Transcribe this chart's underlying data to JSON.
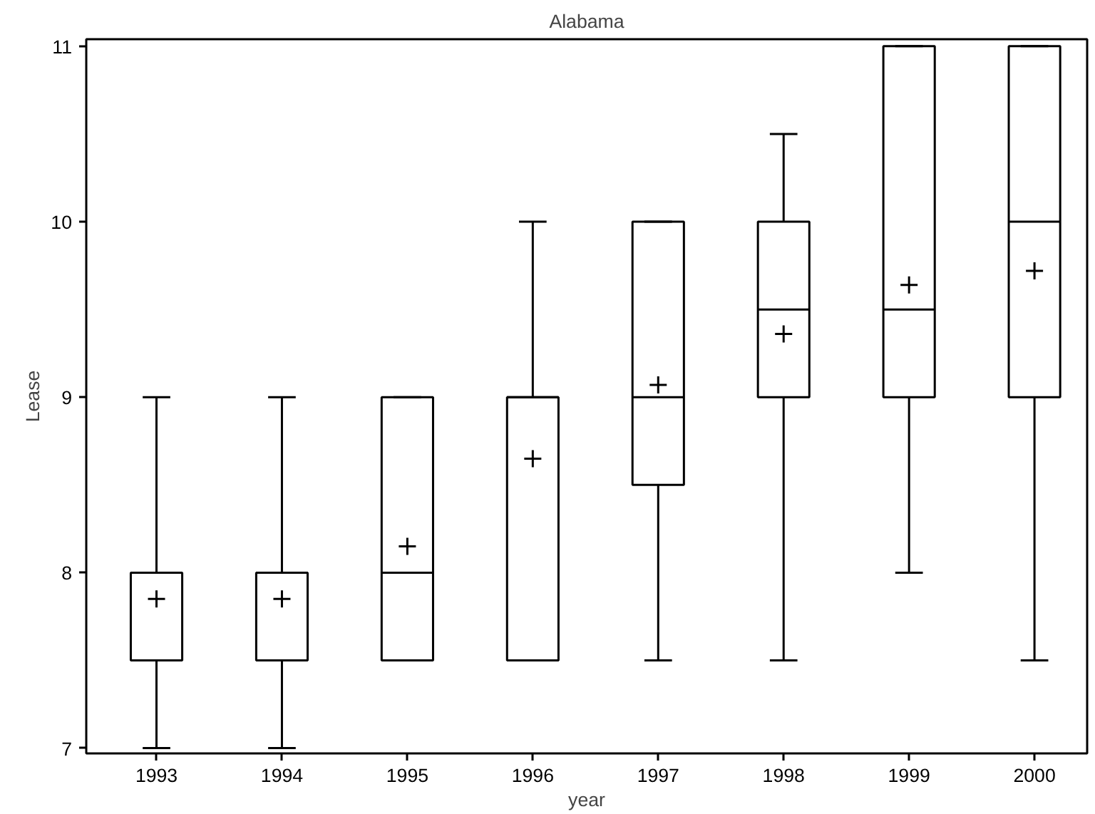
{
  "chart_data": {
    "type": "box",
    "title": "Alabama",
    "xlabel": "year",
    "ylabel": "Lease",
    "categories": [
      "1993",
      "1994",
      "1995",
      "1996",
      "1997",
      "1998",
      "1999",
      "2000"
    ],
    "boxes": [
      {
        "low": 7,
        "q1": 7.5,
        "median": 8,
        "q3": 8,
        "high": 9,
        "mean": 7.85
      },
      {
        "low": 7,
        "q1": 7.5,
        "median": 8,
        "q3": 8,
        "high": 9,
        "mean": 7.85
      },
      {
        "low": 7.5,
        "q1": 7.5,
        "median": 8,
        "q3": 9,
        "high": 9,
        "mean": 8.15
      },
      {
        "low": 7.5,
        "q1": 7.5,
        "median": 9,
        "q3": 9,
        "high": 10,
        "mean": 8.65
      },
      {
        "low": 7.5,
        "q1": 8.5,
        "median": 9,
        "q3": 10,
        "high": 10,
        "mean": 9.07
      },
      {
        "low": 7.5,
        "q1": 9,
        "median": 9.5,
        "q3": 10,
        "high": 10.5,
        "mean": 9.36
      },
      {
        "low": 8,
        "q1": 9,
        "median": 9.5,
        "q3": 11,
        "high": 11,
        "mean": 9.64
      },
      {
        "low": 7.5,
        "q1": 9,
        "median": 10,
        "q3": 11,
        "high": 11,
        "mean": 9.72
      }
    ],
    "color": "#000000",
    "marker": "cross",
    "grid": false,
    "ylim": [
      6.97,
      11.04
    ],
    "yticks": [
      7,
      8,
      9,
      10,
      11
    ]
  }
}
